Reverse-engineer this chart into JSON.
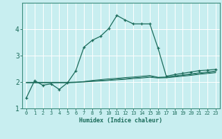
{
  "xlabel": "Humidex (Indice chaleur)",
  "bg_color": "#c8eef0",
  "grid_color": "#ffffff",
  "line_color": "#1a6b5a",
  "xlim": [
    -0.5,
    23.5
  ],
  "ylim": [
    1.0,
    5.0
  ],
  "xticks": [
    0,
    1,
    2,
    3,
    4,
    5,
    6,
    7,
    8,
    9,
    10,
    11,
    12,
    13,
    14,
    15,
    16,
    17,
    18,
    19,
    20,
    21,
    22,
    23
  ],
  "yticks": [
    1,
    2,
    3,
    4
  ],
  "main_x": [
    0,
    1,
    2,
    3,
    4,
    5,
    6,
    7,
    8,
    9,
    10,
    11,
    12,
    13,
    14,
    15,
    16,
    17,
    18,
    19,
    20,
    21,
    22,
    23
  ],
  "main_y": [
    1.4,
    2.05,
    1.88,
    1.93,
    1.72,
    1.97,
    2.42,
    3.32,
    3.58,
    3.73,
    4.02,
    4.52,
    4.35,
    4.2,
    4.2,
    4.2,
    3.28,
    2.22,
    2.28,
    2.33,
    2.38,
    2.43,
    2.45,
    2.48
  ],
  "line2_x": [
    0,
    1,
    2,
    3,
    4,
    5,
    6,
    7,
    8,
    9,
    10,
    11,
    12,
    13,
    14,
    15,
    16,
    17,
    18,
    19,
    20,
    21,
    22,
    23
  ],
  "line2_y": [
    1.97,
    1.97,
    1.97,
    1.97,
    1.97,
    1.97,
    1.98,
    2.02,
    2.06,
    2.09,
    2.12,
    2.14,
    2.17,
    2.19,
    2.22,
    2.25,
    2.18,
    2.19,
    2.23,
    2.27,
    2.31,
    2.35,
    2.38,
    2.42
  ],
  "line3_x": [
    0,
    1,
    2,
    3,
    4,
    5,
    6,
    7,
    8,
    9,
    10,
    11,
    12,
    13,
    14,
    15,
    16,
    17,
    18,
    19,
    20,
    21,
    22,
    23
  ],
  "line3_y": [
    1.98,
    1.98,
    1.98,
    1.98,
    1.98,
    1.98,
    1.99,
    2.01,
    2.04,
    2.06,
    2.08,
    2.11,
    2.13,
    2.16,
    2.18,
    2.21,
    2.17,
    2.18,
    2.21,
    2.25,
    2.28,
    2.32,
    2.35,
    2.38
  ],
  "line4_x": [
    0,
    1,
    2,
    3,
    4,
    5,
    6,
    7,
    8,
    9,
    10,
    11,
    12,
    13,
    14,
    15,
    16,
    17,
    18,
    19,
    20,
    21,
    22,
    23
  ],
  "line4_y": [
    1.99,
    1.99,
    1.99,
    1.99,
    1.99,
    1.99,
    2.0,
    2.0,
    2.02,
    2.04,
    2.06,
    2.08,
    2.1,
    2.13,
    2.15,
    2.18,
    2.15,
    2.16,
    2.19,
    2.22,
    2.25,
    2.29,
    2.32,
    2.35
  ]
}
